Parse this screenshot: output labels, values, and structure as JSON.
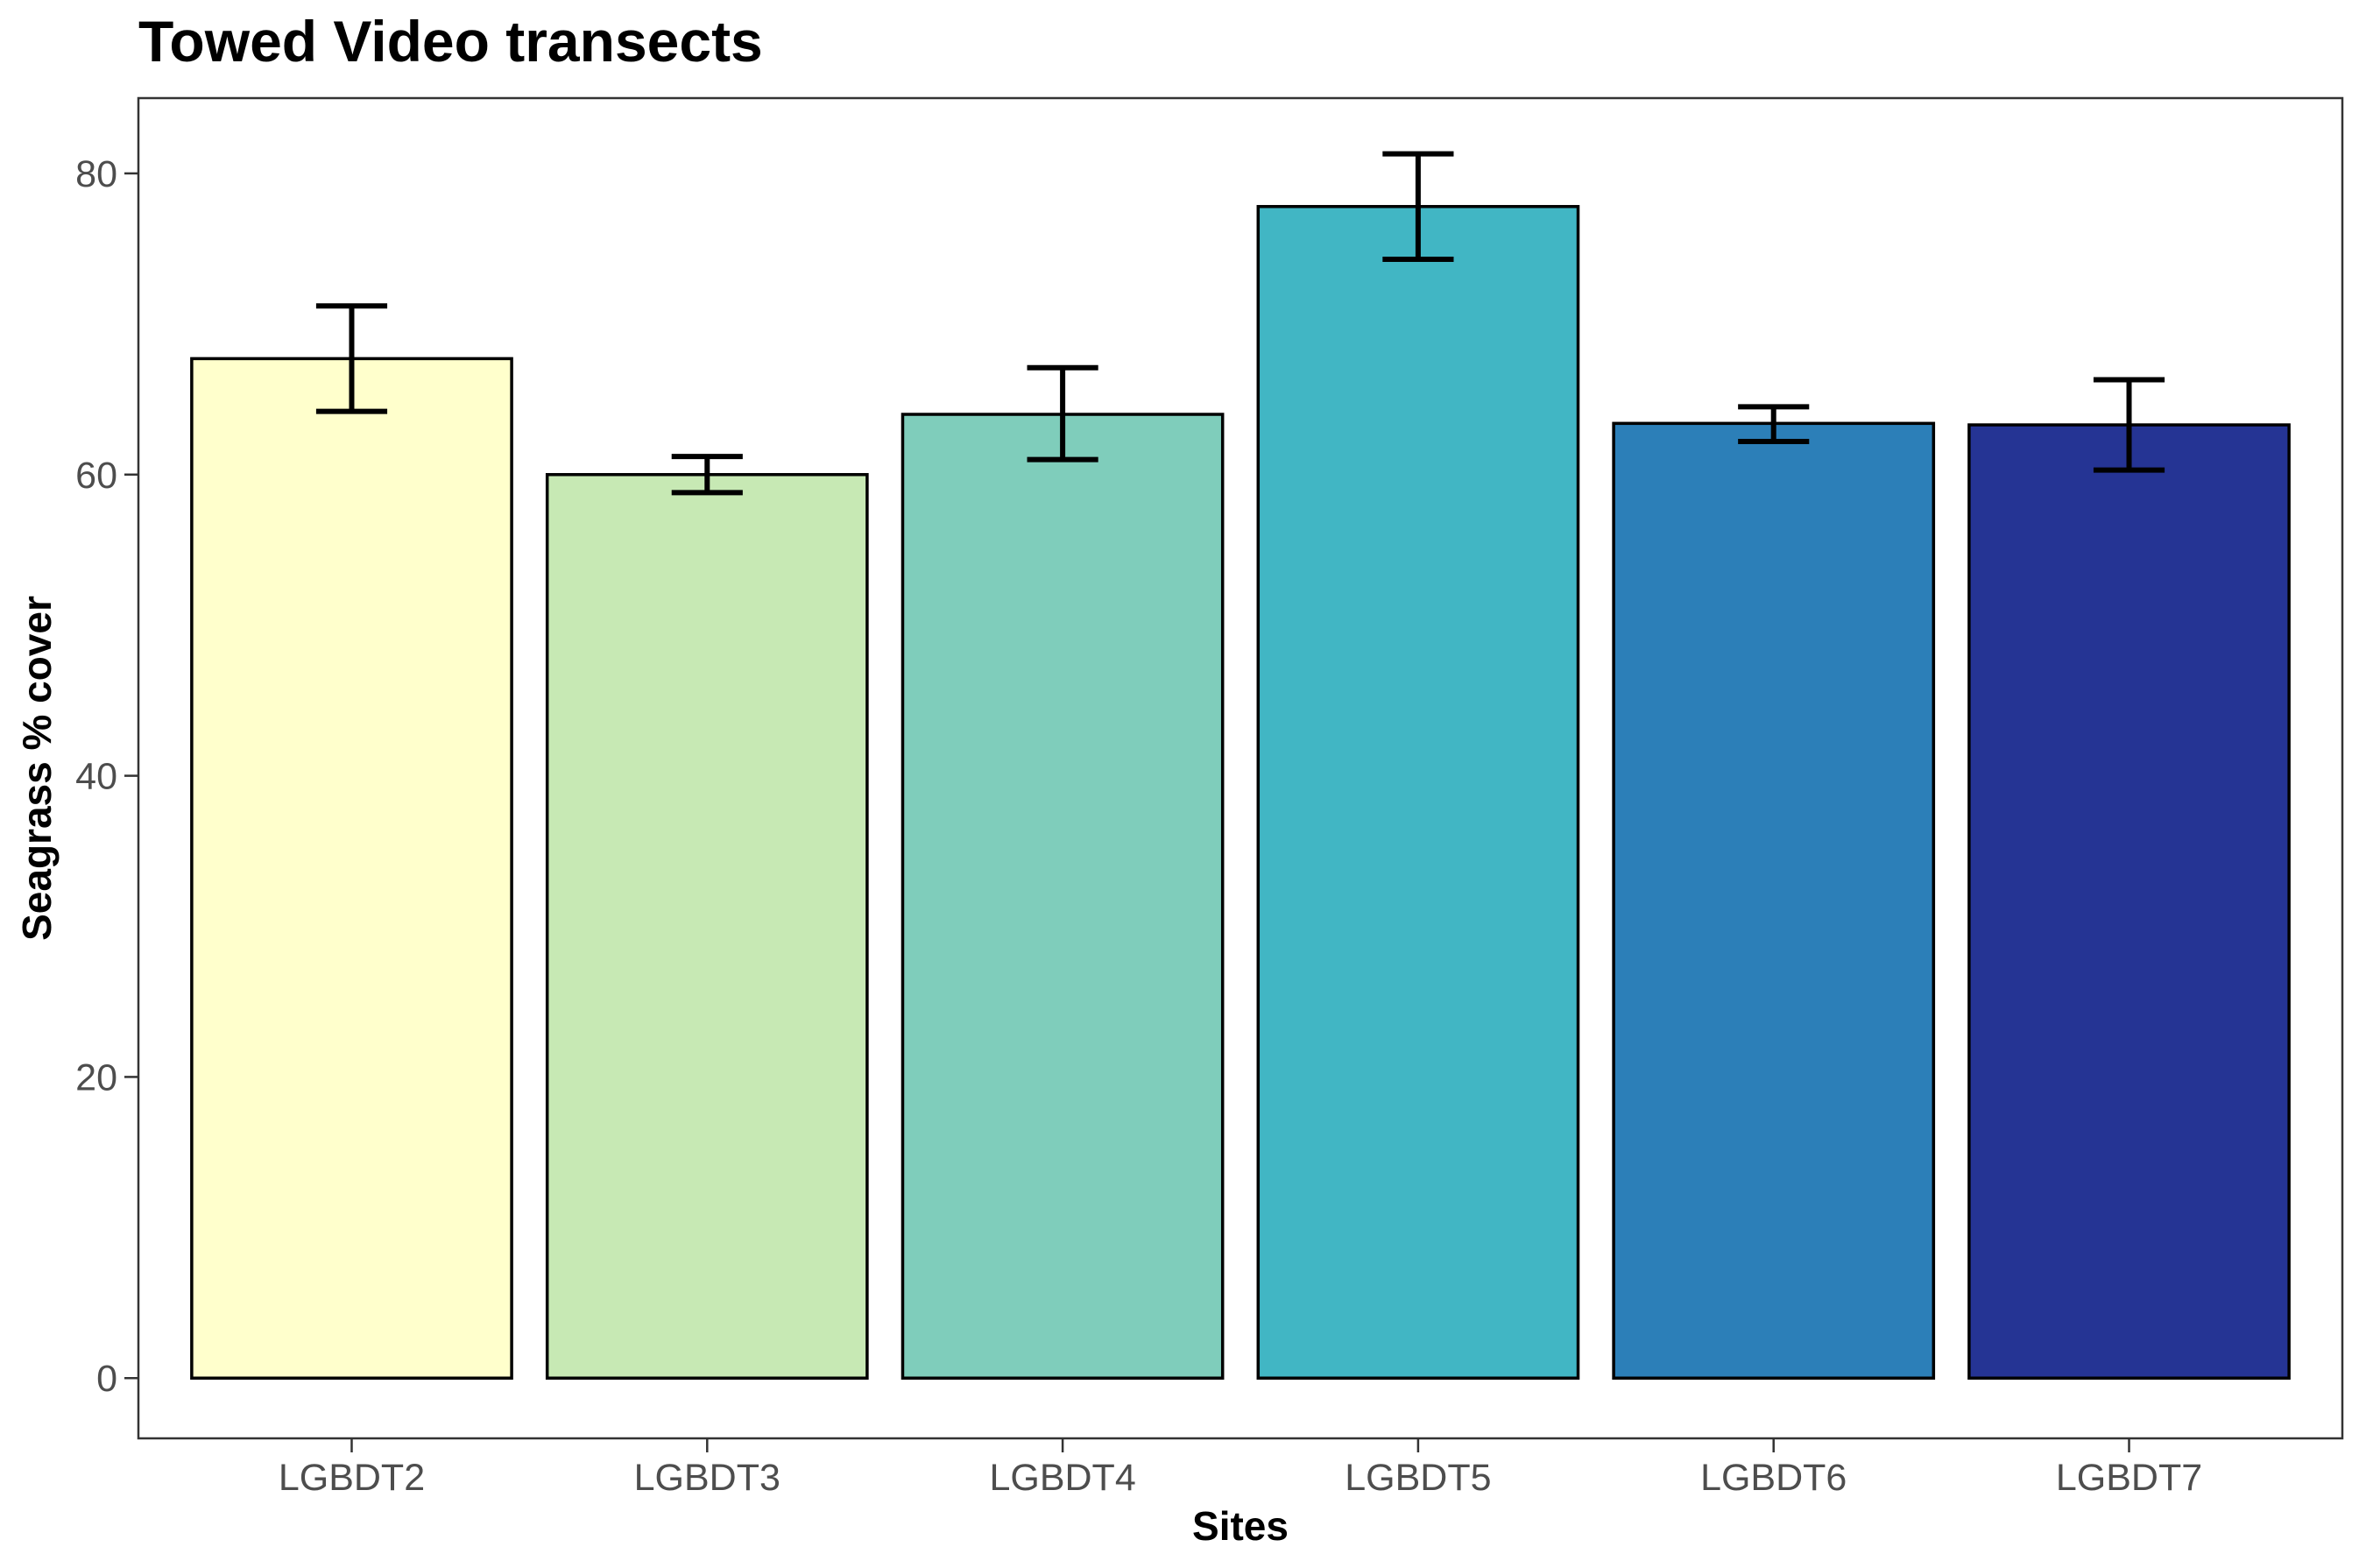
{
  "chart_data": {
    "type": "bar",
    "title": "Towed Video transects",
    "xlabel": "Sites",
    "ylabel": "Seagrass % cover",
    "categories": [
      "LGBDT2",
      "LGBDT3",
      "LGBDT4",
      "LGBDT5",
      "LGBDT6",
      "LGBDT7"
    ],
    "values": [
      67.7,
      60.0,
      64.0,
      77.8,
      63.4,
      63.3
    ],
    "error_low": [
      64.2,
      58.8,
      61.0,
      74.3,
      62.2,
      60.3
    ],
    "error_high": [
      71.2,
      61.2,
      67.1,
      81.3,
      64.5,
      66.3
    ],
    "colors": [
      "#FFFFCC",
      "#C7E9B4",
      "#7FCDBB",
      "#41B6C4",
      "#2C7FB8",
      "#253494"
    ],
    "ylim": [
      -4,
      85
    ],
    "yticks": [
      0,
      20,
      40,
      60,
      80
    ],
    "ytick_labels": [
      "0",
      "20",
      "40",
      "60",
      "80"
    ],
    "grid": false,
    "legend": "none"
  }
}
